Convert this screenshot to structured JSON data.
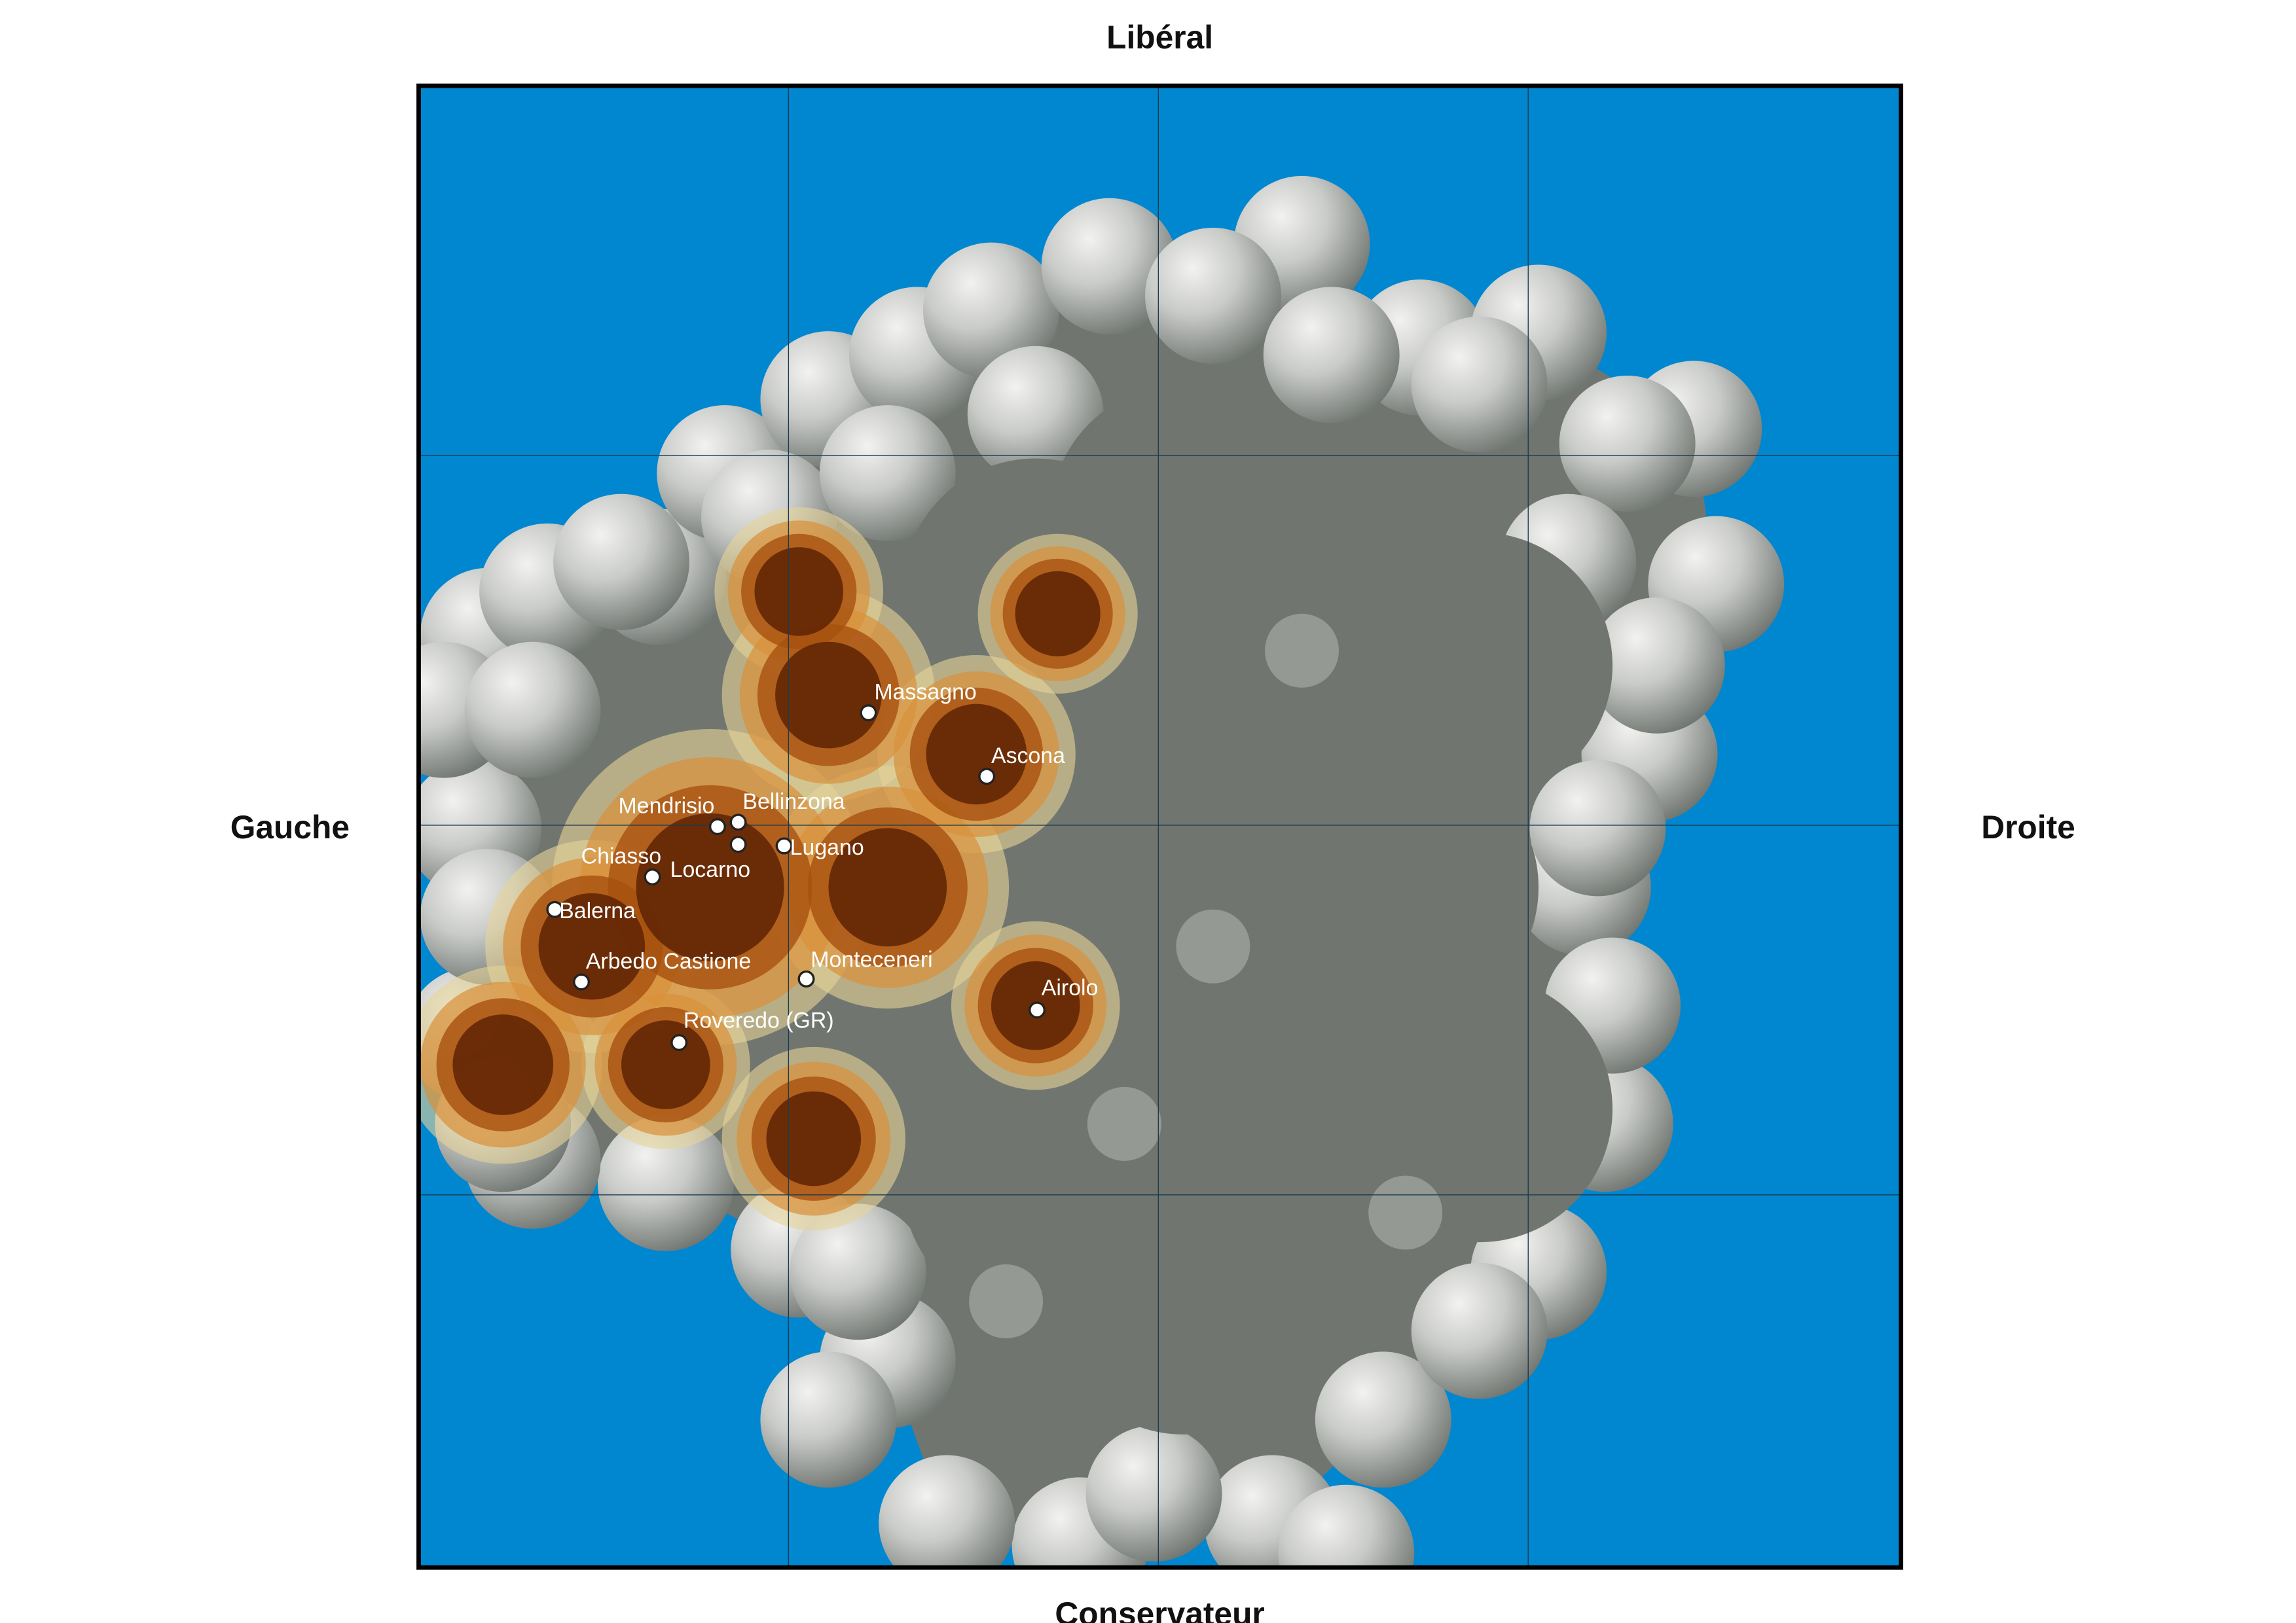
{
  "axes": {
    "top": "Libéral",
    "bottom": "Conservateur",
    "left": "Gauche",
    "right": "Droite"
  },
  "places": [
    "Massagno",
    "Ascona",
    "Mendrisio",
    "Bellinzona",
    "Chiasso",
    "Lugano",
    "Locarno",
    "Balerna",
    "Arbedo Castione",
    "Monteceneri",
    "Roveredo (GR)",
    "Airolo"
  ]
}
